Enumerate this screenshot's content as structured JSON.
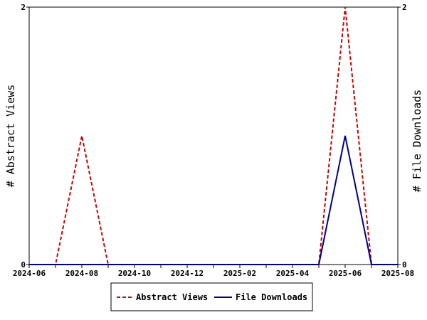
{
  "chart_data": {
    "type": "line",
    "x": [
      "2024-06",
      "2024-07",
      "2024-08",
      "2024-09",
      "2024-10",
      "2024-11",
      "2024-12",
      "2025-01",
      "2025-02",
      "2025-03",
      "2025-04",
      "2025-05",
      "2025-06",
      "2025-07",
      "2025-08"
    ],
    "x_tick_labels": [
      "2024-06",
      "2024-08",
      "2024-10",
      "2024-12",
      "2025-02",
      "2025-04",
      "2025-06",
      "2025-08"
    ],
    "series": [
      {
        "name": "Abstract Views",
        "axis": "left",
        "color": "#cc0000",
        "dash": "dashed",
        "values": [
          0,
          0,
          1,
          0,
          0,
          0,
          0,
          0,
          0,
          0,
          0,
          0,
          2,
          0,
          0
        ]
      },
      {
        "name": "File Downloads",
        "axis": "right",
        "color": "#00008b",
        "dash": "solid",
        "values": [
          0,
          0,
          0,
          0,
          0,
          0,
          0,
          0,
          0,
          0,
          0,
          0,
          1,
          0,
          0
        ]
      }
    ],
    "ylabel": "# Abstract Views",
    "y2label": "# File Downloads",
    "ylim": [
      0,
      2
    ],
    "y2lim": [
      0,
      2
    ],
    "y_tick_labels": [
      "0",
      "2"
    ],
    "y2_tick_labels": [
      "0",
      "2"
    ],
    "grid": false,
    "legend_position": "bottom-center"
  }
}
